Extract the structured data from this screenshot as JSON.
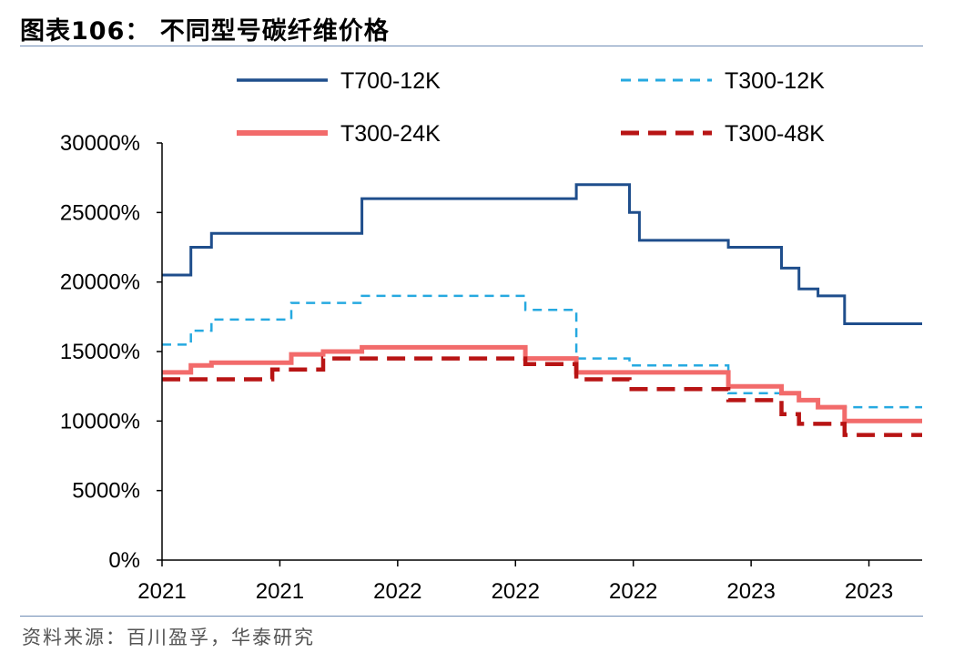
{
  "title": "图表106：  不同型号碳纤维价格",
  "source": "资料来源：百川盈孚，华泰研究",
  "chart_data": {
    "type": "line",
    "title": "图表106：  不同型号碳纤维价格",
    "xlabel": "",
    "ylabel": "",
    "ylim": [
      0,
      30000
    ],
    "yticks": [
      0,
      5000,
      10000,
      15000,
      20000,
      25000,
      30000
    ],
    "ytick_labels": [
      "0%",
      "5000%",
      "10000%",
      "15000%",
      "20000%",
      "25000%",
      "30000%"
    ],
    "xlim": [
      0,
      100
    ],
    "xticks": [
      0,
      15.5,
      31,
      46.5,
      62,
      77.5,
      93
    ],
    "xtick_labels": [
      "2021",
      "2021",
      "2022",
      "2022",
      "2022",
      "2023",
      "2023"
    ],
    "grid": false,
    "legend_position": "top",
    "series": [
      {
        "name": "T700-12K",
        "color": "#1f4e8c",
        "style": "solid",
        "x": [
          0,
          3.8,
          3.8,
          6.5,
          6.5,
          26.3,
          26.3,
          54.5,
          54.5,
          61.5,
          61.5,
          62.8,
          62.8,
          74.5,
          74.5,
          81.5,
          81.5,
          83.8,
          83.8,
          86.3,
          86.3,
          89.8,
          89.8,
          100
        ],
        "y": [
          20500,
          20500,
          22500,
          22500,
          23500,
          23500,
          26000,
          26000,
          27000,
          27000,
          25000,
          25000,
          23000,
          23000,
          22500,
          22500,
          21000,
          21000,
          19500,
          19500,
          19000,
          19000,
          17000,
          17000
        ]
      },
      {
        "name": "T300-12K",
        "color": "#26a9e0",
        "style": "dashed",
        "x": [
          0,
          3.8,
          3.8,
          6.5,
          6.5,
          17.0,
          17.0,
          26.3,
          26.3,
          47.8,
          47.8,
          54.5,
          54.5,
          61.5,
          61.5,
          74.5,
          74.5,
          83.8,
          83.8,
          86.3,
          86.3,
          100
        ],
        "y": [
          15500,
          15500,
          16500,
          16500,
          17300,
          17300,
          18500,
          18500,
          19000,
          19000,
          18000,
          18000,
          14500,
          14500,
          14000,
          14000,
          12000,
          12000,
          11500,
          11500,
          11000,
          11000
        ]
      },
      {
        "name": "T300-24K",
        "color": "#f26b6b",
        "style": "solid",
        "x": [
          0,
          3.8,
          3.8,
          6.5,
          6.5,
          17.0,
          17.0,
          21.2,
          21.2,
          26.3,
          26.3,
          47.8,
          47.8,
          54.5,
          54.5,
          74.5,
          74.5,
          81.5,
          81.5,
          83.8,
          83.8,
          86.3,
          86.3,
          89.8,
          89.8,
          100
        ],
        "y": [
          13500,
          13500,
          14000,
          14000,
          14200,
          14200,
          14800,
          14800,
          15000,
          15000,
          15300,
          15300,
          14500,
          14500,
          13500,
          13500,
          12500,
          12500,
          12000,
          12000,
          11500,
          11500,
          11000,
          11000,
          10000,
          10000
        ]
      },
      {
        "name": "T300-48K",
        "color": "#b81414",
        "style": "dashed",
        "x": [
          0,
          3.8,
          3.8,
          6.5,
          6.5,
          14.5,
          14.5,
          21.2,
          21.2,
          26.3,
          26.3,
          47.8,
          47.8,
          54.5,
          54.5,
          61.5,
          61.5,
          74.5,
          74.5,
          81.5,
          81.5,
          83.8,
          83.8,
          89.8,
          89.8,
          100
        ],
        "y": [
          13000,
          13000,
          13000,
          13000,
          13000,
          13000,
          13700,
          13700,
          14500,
          14500,
          14500,
          14500,
          14100,
          14100,
          13000,
          13000,
          12300,
          12300,
          11500,
          11500,
          10500,
          10500,
          9800,
          9800,
          9000,
          9000
        ]
      }
    ]
  }
}
